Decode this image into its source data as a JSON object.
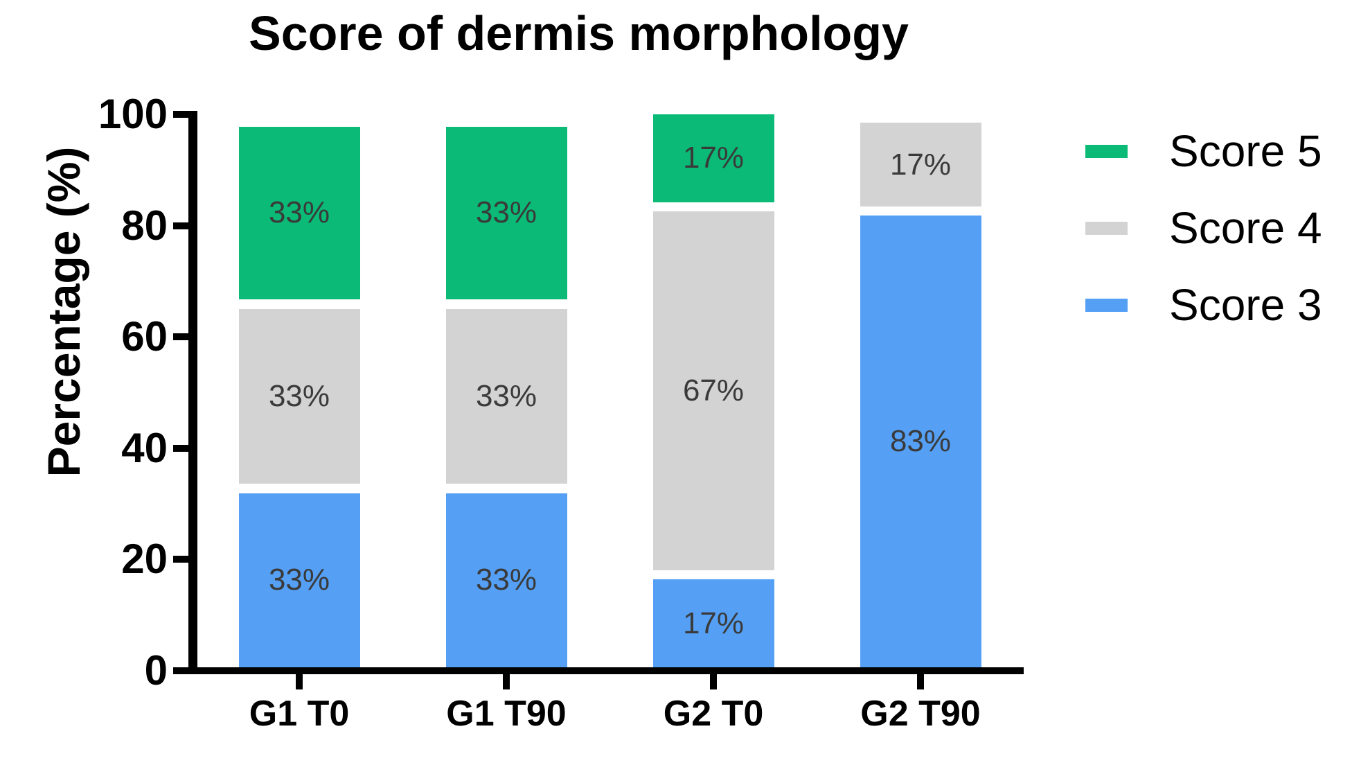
{
  "title": "Score of dermis morphology",
  "colors": {
    "score5": "#0ABA76",
    "score4": "#D3D3D3",
    "score3": "#55A0F5",
    "segment_label_text": "#3A3A3A",
    "axis": "#000000"
  },
  "y_axis": {
    "label": "Percentage (%)",
    "ticks": [
      {
        "v": 100,
        "label": "100"
      },
      {
        "v": 80,
        "label": "80"
      },
      {
        "v": 60,
        "label": "60"
      },
      {
        "v": 40,
        "label": "40"
      },
      {
        "v": 20,
        "label": "20"
      },
      {
        "v": 0,
        "label": "0"
      }
    ]
  },
  "x_axis": {
    "categories": [
      "G1 T0",
      "G1 T90",
      "G2 T0",
      "G2 T90"
    ]
  },
  "legend": [
    {
      "label": "Score 5",
      "color_key": "score5"
    },
    {
      "label": "Score 4",
      "color_key": "score4"
    },
    {
      "label": "Score 3",
      "color_key": "score3"
    }
  ],
  "chart_data": {
    "type": "bar",
    "stacked": true,
    "title": "Score of dermis morphology",
    "xlabel": "",
    "ylabel": "Percentage (%)",
    "ylim": [
      0,
      100
    ],
    "grid": false,
    "legend_position": "right",
    "categories": [
      "G1 T0",
      "G1 T90",
      "G2 T0",
      "G2 T90"
    ],
    "series": [
      {
        "name": "Score 3",
        "color_key": "score3",
        "values": [
          33,
          33,
          17,
          83
        ]
      },
      {
        "name": "Score 4",
        "color_key": "score4",
        "values": [
          33,
          33,
          67,
          17
        ]
      },
      {
        "name": "Score 5",
        "color_key": "score5",
        "values": [
          33,
          33,
          17,
          0
        ]
      }
    ],
    "bars": [
      {
        "category": "G1 T0",
        "segments": [
          {
            "series": "Score 3",
            "color_key": "score3",
            "label": "33%",
            "from": 0,
            "to": 31.5
          },
          {
            "series": "Score 4",
            "color_key": "score4",
            "label": "33%",
            "from": 33.2,
            "to": 64.8
          },
          {
            "series": "Score 5",
            "color_key": "score5",
            "label": "33%",
            "from": 66.5,
            "to": 97.8
          }
        ]
      },
      {
        "category": "G1 T90",
        "segments": [
          {
            "series": "Score 3",
            "color_key": "score3",
            "label": "33%",
            "from": 0,
            "to": 31.5
          },
          {
            "series": "Score 4",
            "color_key": "score4",
            "label": "33%",
            "from": 33.2,
            "to": 64.8
          },
          {
            "series": "Score 5",
            "color_key": "score5",
            "label": "33%",
            "from": 66.5,
            "to": 97.8
          }
        ]
      },
      {
        "category": "G2 T0",
        "segments": [
          {
            "series": "Score 3",
            "color_key": "score3",
            "label": "17%",
            "from": 0,
            "to": 15.9
          },
          {
            "series": "Score 4",
            "color_key": "score4",
            "label": "67%",
            "from": 17.5,
            "to": 82.5
          },
          {
            "series": "Score 5",
            "color_key": "score5",
            "label": "17%",
            "from": 84.1,
            "to": 100
          }
        ]
      },
      {
        "category": "G2 T90",
        "segments": [
          {
            "series": "Score 3",
            "color_key": "score3",
            "label": "83%",
            "from": 0,
            "to": 81.7
          },
          {
            "series": "Score 4",
            "color_key": "score4",
            "label": "17%",
            "from": 83.3,
            "to": 98.5
          }
        ]
      }
    ]
  }
}
